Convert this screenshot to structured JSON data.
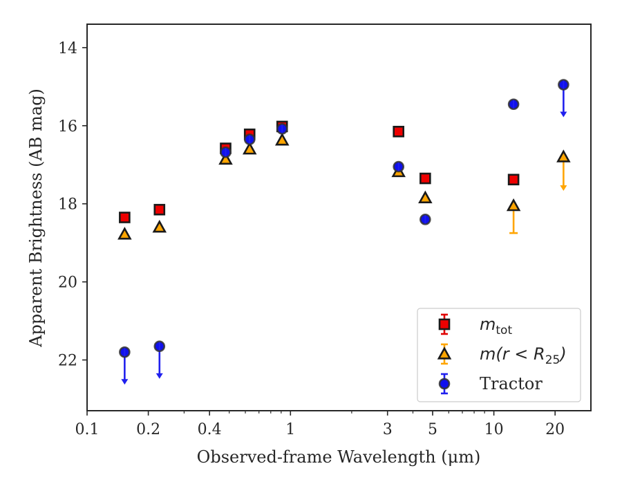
{
  "chart_data": {
    "type": "scatter",
    "xlabel": "Observed-frame Wavelength (μm)",
    "ylabel": "Apparent Brightness (AB mag)",
    "x_scale": "log",
    "xlim": [
      0.1,
      30
    ],
    "ylim": [
      23.3,
      13.4
    ],
    "x_ticks": [
      {
        "value": 0.1,
        "label": "0.1"
      },
      {
        "value": 0.2,
        "label": "0.2"
      },
      {
        "value": 0.4,
        "label": "0.4"
      },
      {
        "value": 1,
        "label": "1"
      },
      {
        "value": 3,
        "label": "3"
      },
      {
        "value": 5,
        "label": "5"
      },
      {
        "value": 10,
        "label": "10"
      },
      {
        "value": 20,
        "label": "20"
      }
    ],
    "y_ticks": [
      {
        "value": 14,
        "label": "14"
      },
      {
        "value": 16,
        "label": "16"
      },
      {
        "value": 18,
        "label": "18"
      },
      {
        "value": 20,
        "label": "20"
      },
      {
        "value": 22,
        "label": "22"
      }
    ],
    "grid": false,
    "legend_position": "bottom-right",
    "series": [
      {
        "name": "m_tot",
        "marker": "square",
        "face_color": "#ee0000",
        "edge_color": "#1a1a1a",
        "errbar_color": "#e00000",
        "points": [
          {
            "x": 0.153,
            "y": 18.35
          },
          {
            "x": 0.227,
            "y": 18.15
          },
          {
            "x": 0.48,
            "y": 16.58
          },
          {
            "x": 0.63,
            "y": 16.22
          },
          {
            "x": 0.91,
            "y": 16.02
          },
          {
            "x": 3.4,
            "y": 16.15
          },
          {
            "x": 4.6,
            "y": 17.35
          },
          {
            "x": 12.5,
            "y": 17.38
          }
        ]
      },
      {
        "name": "m(r < R25)",
        "marker": "triangle",
        "face_color": "#ffa500",
        "edge_color": "#1a1a1a",
        "errbar_color": "#ffa500",
        "points": [
          {
            "x": 0.153,
            "y": 18.78
          },
          {
            "x": 0.227,
            "y": 18.6
          },
          {
            "x": 0.48,
            "y": 16.86
          },
          {
            "x": 0.63,
            "y": 16.6
          },
          {
            "x": 0.91,
            "y": 16.37
          },
          {
            "x": 3.4,
            "y": 17.18
          },
          {
            "x": 4.6,
            "y": 17.85
          },
          {
            "x": 12.5,
            "y": 18.05,
            "err_low": 0.7
          },
          {
            "x": 22,
            "y": 16.8,
            "upper_limit": true
          }
        ]
      },
      {
        "name": "Tractor",
        "marker": "circle",
        "face_color": "#1010ee",
        "edge_color": "#1a1a1a",
        "errbar_color": "#2020ee",
        "points": [
          {
            "x": 0.153,
            "y": 21.8,
            "upper_limit": true
          },
          {
            "x": 0.227,
            "y": 21.65,
            "upper_limit": true
          },
          {
            "x": 0.48,
            "y": 16.68
          },
          {
            "x": 0.63,
            "y": 16.35
          },
          {
            "x": 0.91,
            "y": 16.08
          },
          {
            "x": 3.4,
            "y": 17.05
          },
          {
            "x": 4.6,
            "y": 18.4
          },
          {
            "x": 12.5,
            "y": 15.45
          },
          {
            "x": 22,
            "y": 14.95,
            "upper_limit": true
          }
        ]
      }
    ]
  }
}
